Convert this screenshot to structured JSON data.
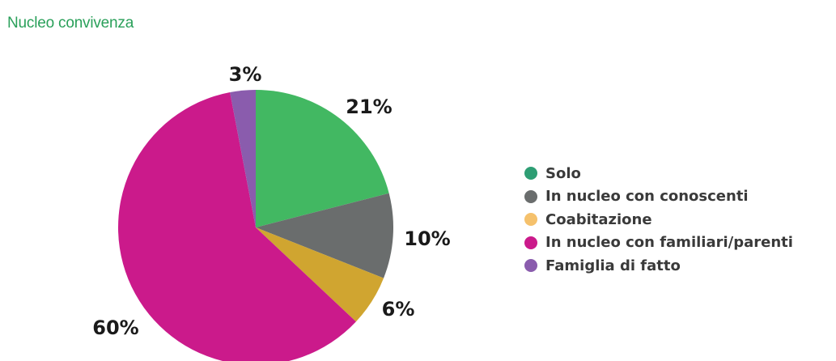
{
  "chart_data": {
    "type": "pie",
    "title": "Nucleo convivenza",
    "slices": [
      {
        "label": "Solo",
        "value": 21,
        "display": "21%",
        "color": "#42b862"
      },
      {
        "label": "In nucleo con conoscenti",
        "value": 10,
        "display": "10%",
        "color": "#6a6d6d"
      },
      {
        "label": "Coabitazione",
        "value": 6,
        "display": "6%",
        "color": "#d0a530"
      },
      {
        "label": "In nucleo con familiari/parenti",
        "value": 60,
        "display": "60%",
        "color": "#cb1a8b"
      },
      {
        "label": "Famiglia di fatto",
        "value": 3,
        "display": "3%",
        "color": "#8a5cad"
      }
    ],
    "legend": {
      "position": "right",
      "items": [
        {
          "label": "Solo",
          "color": "#2e9e74"
        },
        {
          "label": "In nucleo con conoscenti",
          "color": "#6a6d6d"
        },
        {
          "label": "Coabitazione",
          "color": "#f5c16c"
        },
        {
          "label": "In nucleo con familiari/parenti",
          "color": "#cb1a8b"
        },
        {
          "label": "Famiglia di fatto",
          "color": "#8a5cad"
        }
      ]
    }
  }
}
